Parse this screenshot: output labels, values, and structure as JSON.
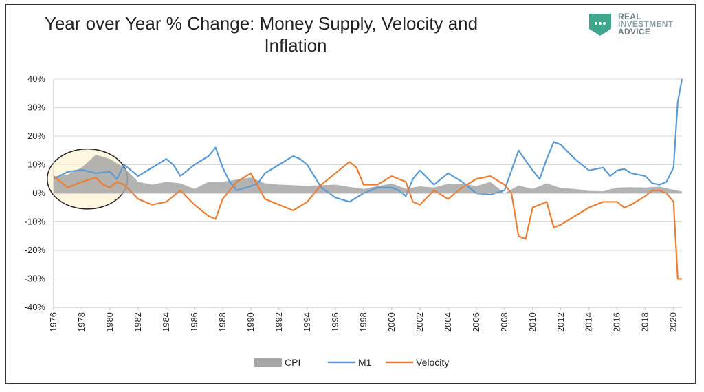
{
  "title_line1": "Year over Year % Change: Money Supply, Velocity and",
  "title_line2": "Inflation",
  "logo": {
    "line1": "REAL",
    "line2": "INVESTMENT",
    "line3": "ADVICE",
    "badge_color": "#3fa58c",
    "text_color": "#6b7c80"
  },
  "chart_data": {
    "type": "line",
    "title": "Year over Year % Change: Money Supply, Velocity and Inflation",
    "xlabel": "",
    "ylabel": "",
    "xlim": [
      1976,
      2020.6
    ],
    "ylim": [
      -40,
      40
    ],
    "y_ticks": [
      40,
      30,
      20,
      10,
      0,
      -10,
      -20,
      -30,
      -40
    ],
    "y_tick_labels": [
      "40%",
      "30%",
      "20%",
      "10%",
      "0%",
      "-10%",
      "-20%",
      "-30%",
      "-40%"
    ],
    "x_tick_labels": [
      "1976",
      "1978",
      "1980",
      "1982",
      "1984",
      "1986",
      "1988",
      "1990",
      "1992",
      "1994",
      "1996",
      "1998",
      "2000",
      "2002",
      "2004",
      "2006",
      "2008",
      "2010",
      "2012",
      "2014",
      "2016",
      "2018",
      "2020"
    ],
    "grid": "horizontal",
    "legend_position": "bottom",
    "series": [
      {
        "name": "CPI",
        "kind": "area",
        "color": "#a6a6a6",
        "points": [
          [
            1976,
            5.8
          ],
          [
            1977,
            6.5
          ],
          [
            1978,
            9
          ],
          [
            1979,
            13.5
          ],
          [
            1980,
            12
          ],
          [
            1981,
            9
          ],
          [
            1982,
            4
          ],
          [
            1983,
            3
          ],
          [
            1984,
            4
          ],
          [
            1985,
            3.5
          ],
          [
            1986,
            1.5
          ],
          [
            1987,
            4
          ],
          [
            1988,
            4
          ],
          [
            1989,
            4.8
          ],
          [
            1990,
            5.5
          ],
          [
            1991,
            3.5
          ],
          [
            1992,
            3
          ],
          [
            1993,
            2.8
          ],
          [
            1994,
            2.6
          ],
          [
            1995,
            2.8
          ],
          [
            1996,
            3
          ],
          [
            1997,
            2.2
          ],
          [
            1998,
            1.5
          ],
          [
            1999,
            2.5
          ],
          [
            2000,
            3.4
          ],
          [
            2001,
            1.6
          ],
          [
            2002,
            2.4
          ],
          [
            2003,
            2
          ],
          [
            2004,
            3.3
          ],
          [
            2005,
            3.4
          ],
          [
            2006,
            2.5
          ],
          [
            2007,
            4
          ],
          [
            2008,
            0
          ],
          [
            2009,
            2.7
          ],
          [
            2010,
            1.5
          ],
          [
            2011,
            3.5
          ],
          [
            2012,
            1.8
          ],
          [
            2013,
            1.5
          ],
          [
            2014,
            0.8
          ],
          [
            2015,
            0.7
          ],
          [
            2016,
            2
          ],
          [
            2017,
            2.1
          ],
          [
            2018,
            2
          ],
          [
            2019,
            2.3
          ],
          [
            2020,
            1.2
          ],
          [
            2020.6,
            0.6
          ]
        ]
      },
      {
        "name": "M1",
        "kind": "line",
        "color": "#5b9bd5",
        "points": [
          [
            1976,
            5
          ],
          [
            1977,
            7.5
          ],
          [
            1978,
            8.2
          ],
          [
            1979,
            7
          ],
          [
            1980,
            7.5
          ],
          [
            1980.5,
            5
          ],
          [
            1981,
            10
          ],
          [
            1982,
            6
          ],
          [
            1983,
            9
          ],
          [
            1984,
            12
          ],
          [
            1984.5,
            10
          ],
          [
            1985,
            6
          ],
          [
            1986,
            10
          ],
          [
            1987,
            13
          ],
          [
            1987.5,
            16
          ],
          [
            1988,
            9
          ],
          [
            1988.5,
            4
          ],
          [
            1989,
            1
          ],
          [
            1990,
            2.5
          ],
          [
            1990.5,
            3.5
          ],
          [
            1991,
            7
          ],
          [
            1992,
            10
          ],
          [
            1993,
            13
          ],
          [
            1993.5,
            12
          ],
          [
            1994,
            10
          ],
          [
            1995,
            2
          ],
          [
            1996,
            -1.5
          ],
          [
            1997,
            -3
          ],
          [
            1998,
            0
          ],
          [
            1999,
            2
          ],
          [
            2000,
            2
          ],
          [
            2000.5,
            1
          ],
          [
            2001,
            -1
          ],
          [
            2001.5,
            5
          ],
          [
            2002,
            8
          ],
          [
            2003,
            3
          ],
          [
            2003.5,
            5
          ],
          [
            2004,
            7
          ],
          [
            2005,
            4
          ],
          [
            2006,
            0
          ],
          [
            2007,
            -0.5
          ],
          [
            2008,
            1
          ],
          [
            2008.5,
            8
          ],
          [
            2009,
            15
          ],
          [
            2010,
            8
          ],
          [
            2010.5,
            5
          ],
          [
            2011,
            12
          ],
          [
            2011.5,
            18
          ],
          [
            2012,
            17
          ],
          [
            2013,
            12
          ],
          [
            2013.5,
            10
          ],
          [
            2014,
            8
          ],
          [
            2015,
            9
          ],
          [
            2015.5,
            6
          ],
          [
            2016,
            8
          ],
          [
            2016.5,
            8.5
          ],
          [
            2017,
            7
          ],
          [
            2018,
            6
          ],
          [
            2018.5,
            3.5
          ],
          [
            2019,
            3
          ],
          [
            2019.5,
            4
          ],
          [
            2020,
            9
          ],
          [
            2020.3,
            32
          ],
          [
            2020.6,
            40
          ]
        ]
      },
      {
        "name": "Velocity",
        "kind": "line",
        "color": "#ed7d31",
        "points": [
          [
            1976,
            6
          ],
          [
            1977,
            2
          ],
          [
            1978,
            4
          ],
          [
            1979,
            5.5
          ],
          [
            1979.5,
            3
          ],
          [
            1980,
            2
          ],
          [
            1980.5,
            4
          ],
          [
            1981,
            3
          ],
          [
            1982,
            -2
          ],
          [
            1983,
            -4
          ],
          [
            1984,
            -3
          ],
          [
            1985,
            1
          ],
          [
            1986,
            -4
          ],
          [
            1987,
            -8
          ],
          [
            1987.5,
            -9
          ],
          [
            1988,
            -2
          ],
          [
            1989,
            4
          ],
          [
            1990,
            7
          ],
          [
            1991,
            -2
          ],
          [
            1992,
            -4
          ],
          [
            1993,
            -6
          ],
          [
            1994,
            -3
          ],
          [
            1995,
            3
          ],
          [
            1996,
            7
          ],
          [
            1997,
            11
          ],
          [
            1997.5,
            9
          ],
          [
            1998,
            3
          ],
          [
            1999,
            3
          ],
          [
            2000,
            6
          ],
          [
            2001,
            4
          ],
          [
            2001.5,
            -3
          ],
          [
            2002,
            -4
          ],
          [
            2003,
            1
          ],
          [
            2004,
            -2
          ],
          [
            2005,
            2
          ],
          [
            2006,
            5
          ],
          [
            2007,
            6
          ],
          [
            2008,
            3
          ],
          [
            2008.5,
            0
          ],
          [
            2009,
            -15
          ],
          [
            2009.5,
            -16
          ],
          [
            2010,
            -5
          ],
          [
            2011,
            -3
          ],
          [
            2011.5,
            -12
          ],
          [
            2012,
            -11
          ],
          [
            2013,
            -8
          ],
          [
            2014,
            -5
          ],
          [
            2015,
            -3
          ],
          [
            2016,
            -3
          ],
          [
            2016.5,
            -5
          ],
          [
            2017,
            -4
          ],
          [
            2018,
            -1
          ],
          [
            2018.5,
            1
          ],
          [
            2019,
            1
          ],
          [
            2019.5,
            0
          ],
          [
            2020,
            -3
          ],
          [
            2020.3,
            -30
          ],
          [
            2020.6,
            -30
          ]
        ]
      }
    ],
    "annotation": {
      "type": "ellipse",
      "center_x": 1978.4,
      "center_y": 5,
      "span_x": 5.7,
      "span_y": 21
    }
  }
}
